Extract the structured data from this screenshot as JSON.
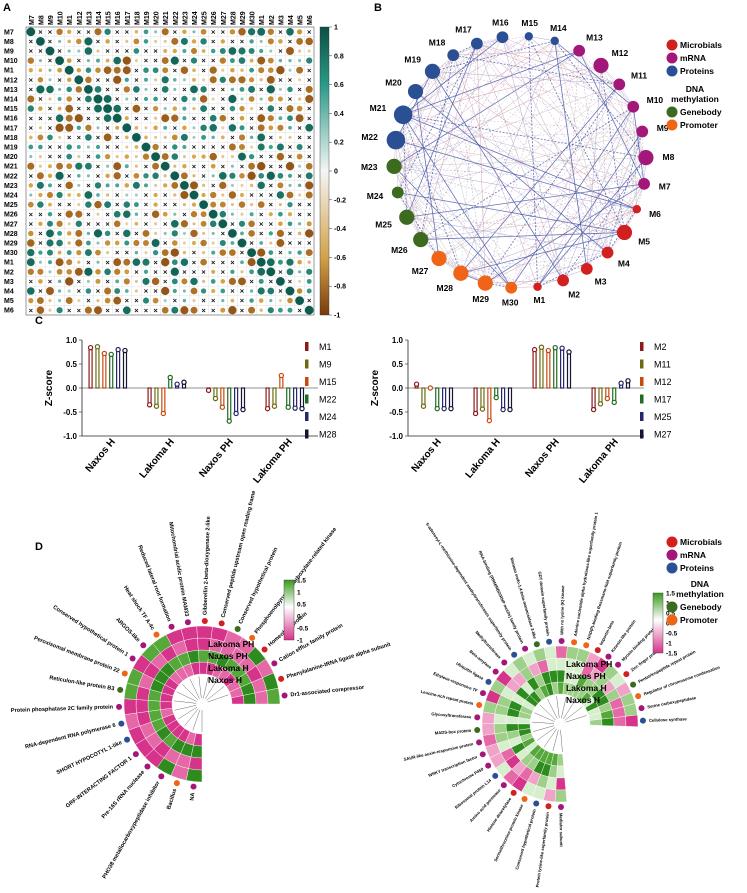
{
  "figure": {
    "panel_labels": [
      "A",
      "B",
      "C",
      "D"
    ]
  },
  "panel_a": {
    "row_labels": [
      "M7",
      "M8",
      "M9",
      "M10",
      "M1",
      "M12",
      "M13",
      "M14",
      "M15",
      "M16",
      "M17",
      "M18",
      "M19",
      "M20",
      "M21",
      "M22",
      "M23",
      "M24",
      "M25",
      "M26",
      "M27",
      "M28",
      "M29",
      "M30",
      "M1",
      "M2",
      "M3",
      "M4",
      "M5",
      "M6"
    ],
    "col_labels": [
      "M7",
      "M8",
      "M9",
      "M10",
      "M1",
      "M12",
      "M13",
      "M14",
      "M15",
      "M16",
      "M17",
      "M18",
      "M19",
      "M20",
      "M21",
      "M22",
      "M23",
      "M24",
      "M25",
      "M26",
      "M27",
      "M28",
      "M29",
      "M30",
      "M1",
      "M2",
      "M3",
      "M4",
      "M5",
      "M6"
    ],
    "colorbar_ticks": [
      "1",
      "0.8",
      "0.6",
      "0.4",
      "0.2",
      "0",
      "-0.2",
      "-0.4",
      "-0.6",
      "-0.8",
      "-1"
    ],
    "colors": {
      "pos": "#0d5c4f",
      "mid": "#f5f5f5",
      "neg": "#8a4b12"
    },
    "cross_symbol": "×"
  },
  "panel_b": {
    "legend": [
      {
        "label": "Microbials",
        "color": "#d21f1f"
      },
      {
        "label": "mRNA",
        "color": "#a3177a"
      },
      {
        "label": "Proteins",
        "color": "#2b4f93"
      },
      {
        "label": "DNA",
        "color": ""
      },
      {
        "label": "methylation",
        "color": ""
      },
      {
        "label": "Genebody",
        "color": "#3c6b1f"
      },
      {
        "label": "Promoter",
        "color": "#f06418"
      }
    ],
    "nodes": [
      {
        "label": "M13",
        "type": "mRNA"
      },
      {
        "label": "M12",
        "type": "mRNA"
      },
      {
        "label": "M11",
        "type": "mRNA"
      },
      {
        "label": "M10",
        "type": "mRNA"
      },
      {
        "label": "M9",
        "type": "mRNA"
      },
      {
        "label": "M8",
        "type": "mRNA"
      },
      {
        "label": "M7",
        "type": "mRNA"
      },
      {
        "label": "M6",
        "type": "Microbials"
      },
      {
        "label": "M5",
        "type": "Microbials"
      },
      {
        "label": "M4",
        "type": "Microbials"
      },
      {
        "label": "M3",
        "type": "Microbials"
      },
      {
        "label": "M2",
        "type": "Microbials"
      },
      {
        "label": "M1",
        "type": "Microbials"
      },
      {
        "label": "M30",
        "type": "Promoter"
      },
      {
        "label": "M29",
        "type": "Promoter"
      },
      {
        "label": "M28",
        "type": "Promoter"
      },
      {
        "label": "M27",
        "type": "Promoter"
      },
      {
        "label": "M26",
        "type": "Genebody"
      },
      {
        "label": "M25",
        "type": "Genebody"
      },
      {
        "label": "M24",
        "type": "Genebody"
      },
      {
        "label": "M23",
        "type": "Genebody"
      },
      {
        "label": "M22",
        "type": "Proteins"
      },
      {
        "label": "M21",
        "type": "Proteins"
      },
      {
        "label": "M20",
        "type": "Proteins"
      },
      {
        "label": "M19",
        "type": "Proteins"
      },
      {
        "label": "M18",
        "type": "Proteins"
      },
      {
        "label": "M17",
        "type": "Proteins"
      },
      {
        "label": "M16",
        "type": "Proteins"
      },
      {
        "label": "M15",
        "type": "Proteins"
      },
      {
        "label": "M14",
        "type": "Proteins"
      }
    ],
    "node_sizes": [
      2,
      3,
      2,
      2,
      2,
      3,
      2,
      1,
      3,
      2,
      2,
      2,
      1,
      2,
      3,
      3,
      3,
      3,
      3,
      2,
      3,
      4,
      4,
      3,
      3,
      2,
      2,
      2,
      1,
      1
    ],
    "node_colors": {
      "Microbials": "#d21f1f",
      "mRNA": "#a3177a",
      "Proteins": "#2b4f93",
      "Genebody": "#3c6b1f",
      "Promoter": "#f06418"
    }
  },
  "chart_data": [
    {
      "type": "bar",
      "title": "",
      "ylabel": "Z-score",
      "xlabel": "",
      "ylim": [
        -1.0,
        1.0
      ],
      "yticks": [
        "1.0",
        "0.5",
        "0.0",
        "-0.5",
        "-1.0"
      ],
      "categories": [
        "Naxos H",
        "Lakoma H",
        "Naxos PH",
        "Lakoma PH"
      ],
      "series": [
        {
          "name": "M1",
          "color": "#8b1a1a",
          "values": [
            0.84,
            -0.35,
            -0.05,
            -0.43
          ]
        },
        {
          "name": "M9",
          "color": "#6b6b12",
          "values": [
            0.86,
            -0.38,
            -0.22,
            -0.38
          ]
        },
        {
          "name": "M15",
          "color": "#c64a10",
          "values": [
            0.72,
            -0.53,
            -0.4,
            0.26
          ]
        },
        {
          "name": "M22",
          "color": "#1f6b24",
          "values": [
            0.7,
            0.22,
            -0.69,
            -0.4
          ]
        },
        {
          "name": "M24",
          "color": "#26266b",
          "values": [
            0.8,
            0.08,
            -0.53,
            -0.42
          ]
        },
        {
          "name": "M28",
          "color": "#141433",
          "values": [
            0.78,
            0.12,
            -0.45,
            -0.43
          ]
        }
      ]
    },
    {
      "type": "bar",
      "title": "",
      "ylabel": "Z-score",
      "xlabel": "",
      "ylim": [
        -1.0,
        1.0
      ],
      "yticks": [
        "1.0",
        "0.5",
        "0.0",
        "-0.5",
        "-1.0"
      ],
      "categories": [
        "Naxos H",
        "Lakoma H",
        "Naxos PH",
        "Lakoma PH"
      ],
      "series": [
        {
          "name": "M2",
          "color": "#8b1a1a",
          "values": [
            0.08,
            -0.53,
            0.8,
            -0.45
          ]
        },
        {
          "name": "M11",
          "color": "#6b6b12",
          "values": [
            -0.38,
            -0.44,
            0.85,
            -0.33
          ]
        },
        {
          "name": "M12",
          "color": "#c64a10",
          "values": [
            0.0,
            -0.68,
            0.78,
            -0.22
          ]
        },
        {
          "name": "M17",
          "color": "#1f6b24",
          "values": [
            -0.43,
            -0.2,
            0.84,
            -0.3
          ]
        },
        {
          "name": "M25",
          "color": "#26266b",
          "values": [
            -0.43,
            -0.45,
            0.83,
            0.1
          ]
        },
        {
          "name": "M27",
          "color": "#141433",
          "values": [
            -0.43,
            -0.45,
            0.75,
            0.15
          ]
        }
      ]
    }
  ],
  "panel_d": {
    "ring_labels": [
      "Lakoma PH",
      "Naxos PH",
      "Lakoma H",
      "Naxos H"
    ],
    "left_colorbar_ticks": [
      "1.5",
      "1",
      "0.5",
      "0",
      "-0.5",
      "-1"
    ],
    "right_colorbar_ticks": [
      "1.5",
      "1",
      "0.5",
      "0",
      "-0.5",
      "-1",
      "-1.5"
    ],
    "legend": [
      {
        "label": "Microbials",
        "color": "#d21f1f"
      },
      {
        "label": "mRNA",
        "color": "#a3177a"
      },
      {
        "label": "Proteins",
        "color": "#2b4f93"
      },
      {
        "label": "DNA",
        "color": ""
      },
      {
        "label": "methylation",
        "color": ""
      },
      {
        "label": "Genebody",
        "color": "#3c6b1f"
      },
      {
        "label": "Promoter",
        "color": "#f06418"
      }
    ],
    "left_features": [
      "NA",
      "Bacillus",
      "PHO38 metallocarboxypeptidase inhibitor",
      "Pre-16S rRNA nuclease",
      "GRF-INTERACTING FACTOR 1",
      "SHORT HYPOCOTYL 1-like",
      "RNA-dependent RNA polymerase 6",
      "Protein phosphatase 2C family protein",
      "Reticulon-like protein B3",
      "Peroxisomal membrane protein 22",
      "Conserved hypothetical protein 1",
      "ARGOS-like",
      "Heat shock TF A-4c",
      "Reduced lateral root formation",
      "Mitochondrial acidic protein MAM33",
      "Gibberellin 2-beta-dioxygenase 2-like",
      "Conserved peptide upstream open reading frame",
      "Conserved hypothetical protein",
      "Phosphoenolpyruvate carboxylase-related kinase",
      "Homeobox protein",
      "Cation efflux family protein",
      "Phenylalanine-tRNA ligase alpha subunit",
      "Dr1-associated corepressor"
    ],
    "right_features": [
      "Mediator subunit",
      "Protein lysine-like superfamily protein",
      "Conserved hypothetical protein",
      "Serine/threonine-protein kinase",
      "Histone deacetylase",
      "Amino acid permease",
      "Ribosomal protein L14",
      "Cytochrome P450",
      "WRKY transcription factor",
      "SAUR-like auxin-responsive protein",
      "MADS-box protein",
      "Glycosyltransferase",
      "Leucine-rich repeat protein",
      "Ethylene-responsive TF",
      "Ubiquitin ligase",
      "Beta-amylase",
      "Methyltransferase",
      "S-adenosyl-L-methionine-dependent methyltransferases superfamily protein",
      "RNA-binding (RRM/RBD/RNP motifs) family protein",
      "Mannan endo-1,4-beta-mannosidase 2-like",
      "GDT domain superfamily protein",
      "With no lysine (K) kinase",
      "Adenine nucleotide alpha hydrolases-like superfamily protein 1",
      "NAD(P)-binding Rossmann-fold superfamily protein",
      "Importin-beta",
      "Kinesin-like protein",
      "Myosin-binding protein",
      "Zinc finger protein",
      "Pentatricopeptide repeat protein",
      "Regulator of chromosome condensation",
      "Serine carboxypeptidase",
      "Cellulose synthase"
    ]
  }
}
